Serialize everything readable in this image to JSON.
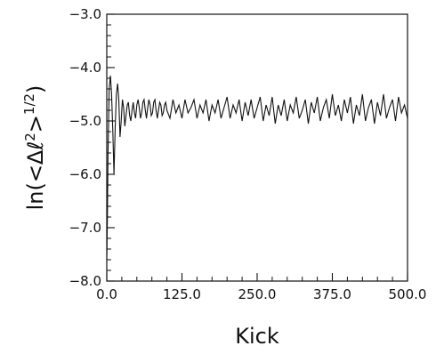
{
  "chart_data": {
    "type": "line",
    "title": "",
    "xlabel": "Kick",
    "ylabel": "ln(<Δℓ²>^(1/2))",
    "ylabel_parts": {
      "prefix": "ln(<Δℓ",
      "sq": "2",
      "mid": ">",
      "exp": "1/2",
      "suffix": ")"
    },
    "xlim": [
      0,
      500
    ],
    "ylim": [
      -8.0,
      -3.0
    ],
    "x_ticks": [
      0,
      125,
      250,
      375,
      500
    ],
    "x_tick_labels": [
      "0.0",
      "125.0",
      "250.0",
      "375.0",
      "500.0"
    ],
    "y_ticks": [
      -8,
      -7,
      -6,
      -5,
      -4,
      -3
    ],
    "y_tick_labels": [
      "−8.0",
      "−7.0",
      "−6.0",
      "−5.0",
      "−4.0",
      "−3.0"
    ],
    "grid": false,
    "legend": "none",
    "series": [
      {
        "x": [
          0,
          1,
          2,
          4,
          6,
          8,
          10,
          12,
          14,
          16,
          18,
          20,
          22,
          24,
          26,
          28,
          30,
          32,
          34,
          36,
          38,
          40,
          42,
          44,
          46,
          48,
          50,
          52,
          54,
          56,
          58,
          60,
          62,
          64,
          66,
          68,
          70,
          72,
          74,
          76,
          78,
          80,
          82,
          84,
          86,
          88,
          90,
          92,
          94,
          96,
          98,
          100,
          105,
          110,
          115,
          120,
          125,
          130,
          135,
          140,
          145,
          150,
          155,
          160,
          165,
          170,
          175,
          180,
          185,
          190,
          195,
          200,
          205,
          210,
          215,
          220,
          225,
          230,
          235,
          240,
          245,
          250,
          255,
          260,
          265,
          270,
          275,
          280,
          285,
          290,
          295,
          300,
          305,
          310,
          315,
          320,
          325,
          330,
          335,
          340,
          345,
          350,
          355,
          360,
          365,
          370,
          375,
          380,
          385,
          390,
          395,
          400,
          405,
          410,
          415,
          420,
          425,
          430,
          435,
          440,
          445,
          450,
          455,
          460,
          465,
          470,
          475,
          480,
          485,
          490,
          495,
          500
        ],
        "y": [
          -7.6,
          -6.8,
          -5.6,
          -4.4,
          -4.15,
          -4.5,
          -5.2,
          -6.0,
          -5.1,
          -4.5,
          -4.3,
          -4.6,
          -5.3,
          -5.0,
          -4.6,
          -4.75,
          -5.1,
          -4.9,
          -4.7,
          -4.65,
          -4.9,
          -5.0,
          -4.8,
          -4.65,
          -4.85,
          -4.95,
          -4.7,
          -4.6,
          -4.75,
          -4.95,
          -4.85,
          -4.65,
          -4.6,
          -4.8,
          -4.95,
          -4.75,
          -4.6,
          -4.7,
          -4.9,
          -4.85,
          -4.65,
          -4.6,
          -4.8,
          -4.95,
          -4.8,
          -4.65,
          -4.7,
          -4.9,
          -4.85,
          -4.7,
          -4.65,
          -4.8,
          -4.95,
          -4.6,
          -4.85,
          -4.7,
          -4.95,
          -4.6,
          -4.85,
          -4.75,
          -4.6,
          -4.95,
          -4.7,
          -4.85,
          -4.6,
          -5.0,
          -4.7,
          -4.85,
          -4.6,
          -4.95,
          -4.75,
          -4.55,
          -4.95,
          -4.7,
          -4.85,
          -4.6,
          -5.0,
          -4.65,
          -4.9,
          -4.6,
          -4.95,
          -4.75,
          -4.55,
          -5.0,
          -4.7,
          -4.9,
          -4.55,
          -5.05,
          -4.7,
          -4.9,
          -4.6,
          -5.0,
          -4.7,
          -4.85,
          -4.55,
          -4.95,
          -4.8,
          -4.6,
          -5.05,
          -4.65,
          -4.85,
          -4.55,
          -5.0,
          -4.75,
          -4.6,
          -4.95,
          -4.5,
          -4.9,
          -4.7,
          -5.0,
          -4.6,
          -4.85,
          -4.55,
          -5.05,
          -4.7,
          -4.9,
          -4.5,
          -5.0,
          -4.75,
          -4.6,
          -5.05,
          -4.65,
          -4.9,
          -4.5,
          -4.95,
          -4.75,
          -4.6,
          -5.0,
          -4.55,
          -4.85,
          -4.7,
          -4.95
        ]
      }
    ]
  }
}
